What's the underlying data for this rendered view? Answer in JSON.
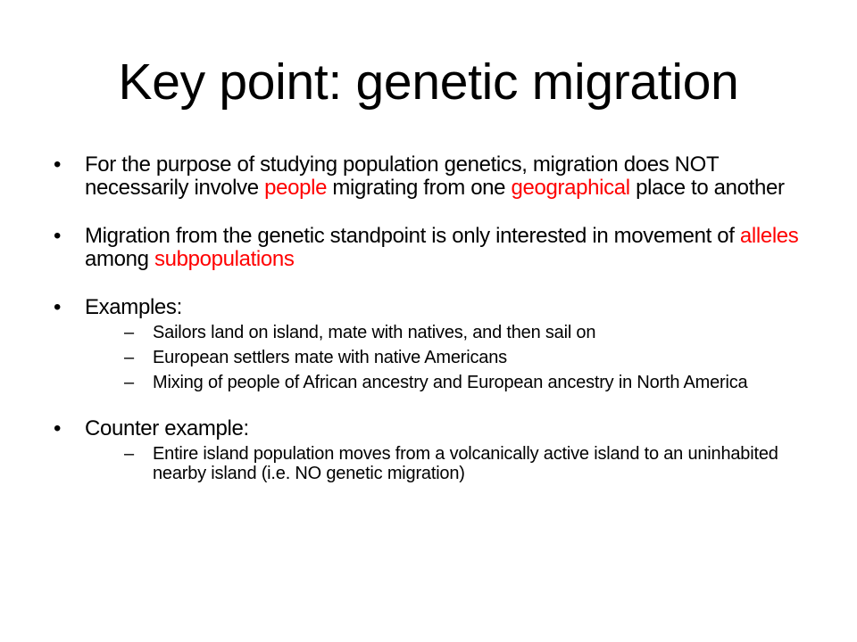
{
  "slide": {
    "title": "Key point:  genetic migration",
    "bullet_glyph": "•",
    "sub_glyph": "–",
    "accent_color": "#ff0000",
    "bullets": [
      {
        "parts": [
          "For the purpose of studying population genetics, migration does NOT necessarily involve ",
          "people",
          " migrating from one ",
          "geographical",
          " place to another"
        ]
      },
      {
        "parts": [
          "Migration from the genetic standpoint is only interested in movement of ",
          "alleles",
          " among ",
          "subpopulations"
        ]
      },
      {
        "text": "Examples:",
        "subs": [
          "Sailors land on island, mate with natives, and then sail on",
          "European settlers mate with native Americans",
          "Mixing of people of African ancestry and European ancestry in North America"
        ]
      },
      {
        "text": "Counter example:",
        "subs": [
          "Entire island population moves from a volcanically active island to an uninhabited nearby island (i.e. NO genetic migration)"
        ]
      }
    ]
  }
}
